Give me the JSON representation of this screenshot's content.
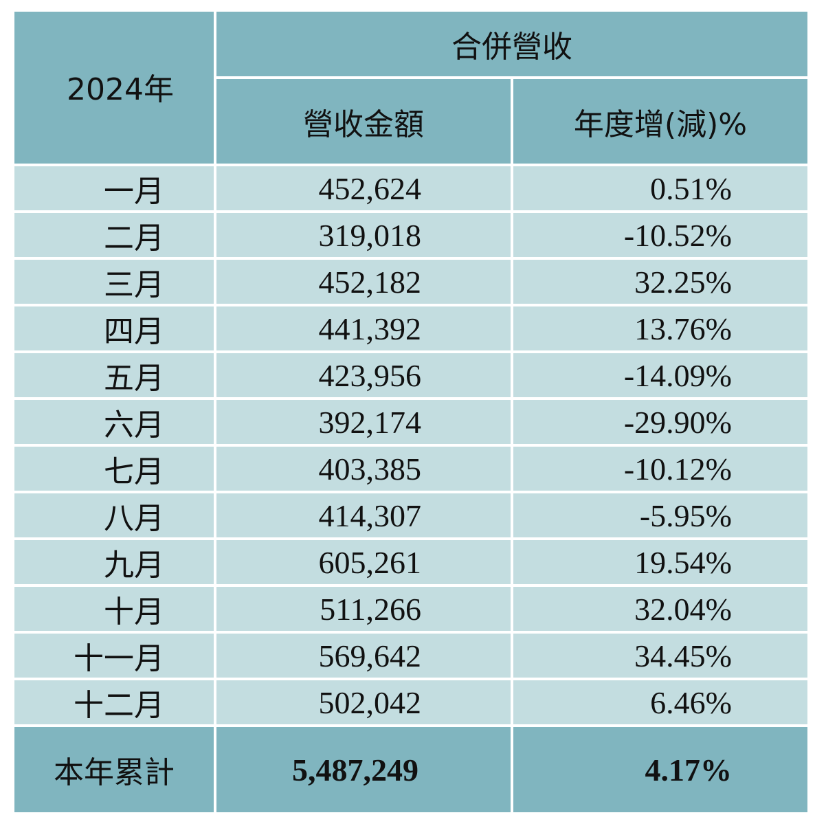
{
  "table": {
    "year_header": "2024年",
    "group_header": "合併營收",
    "col_amount_header": "營收金額",
    "col_yoy_header": "年度增(減)%",
    "rows": [
      {
        "month": "一月",
        "amount": "452,624",
        "yoy": "0.51%"
      },
      {
        "month": "二月",
        "amount": "319,018",
        "yoy": "-10.52%"
      },
      {
        "month": "三月",
        "amount": "452,182",
        "yoy": "32.25%"
      },
      {
        "month": "四月",
        "amount": "441,392",
        "yoy": "13.76%"
      },
      {
        "month": "五月",
        "amount": "423,956",
        "yoy": "-14.09%"
      },
      {
        "month": "六月",
        "amount": "392,174",
        "yoy": "-29.90%"
      },
      {
        "month": "七月",
        "amount": "403,385",
        "yoy": "-10.12%"
      },
      {
        "month": "八月",
        "amount": "414,307",
        "yoy": "-5.95%"
      },
      {
        "month": "九月",
        "amount": "605,261",
        "yoy": "19.54%"
      },
      {
        "month": "十月",
        "amount": "511,266",
        "yoy": "32.04%"
      },
      {
        "month": "十一月",
        "amount": "569,642",
        "yoy": "34.45%"
      },
      {
        "month": "十二月",
        "amount": "502,042",
        "yoy": "6.46%"
      }
    ],
    "total": {
      "label": "本年累計",
      "amount": "5,487,249",
      "yoy": "4.17%"
    }
  },
  "colors": {
    "header_bg": "#80b5bf",
    "row_bg": "#c3dde0",
    "border": "#ffffff",
    "text": "#111111"
  }
}
